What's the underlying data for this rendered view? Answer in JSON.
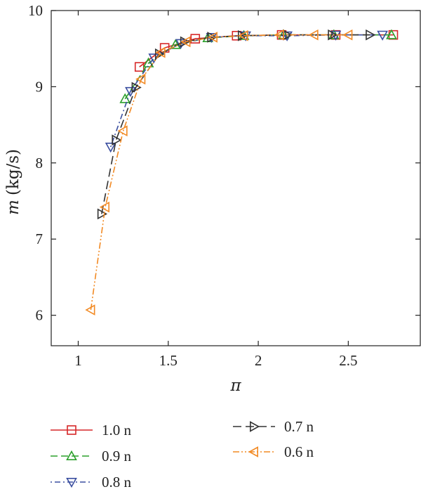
{
  "chart_data": {
    "type": "line",
    "xlabel": "π",
    "ylabel": "m",
    "ylabel_unit": "(kg/s)",
    "xlim": [
      0.85,
      2.9
    ],
    "ylim": [
      5.6,
      10
    ],
    "xticks": [
      1,
      1.5,
      2,
      2.5
    ],
    "xtick_labels": [
      "1",
      "1.5",
      "2",
      "2.5"
    ],
    "yticks": [
      6,
      7,
      8,
      9,
      10
    ],
    "ytick_labels": [
      "6",
      "7",
      "8",
      "9",
      "10"
    ],
    "grid": false,
    "legend_position": "bottom",
    "series": [
      {
        "name": "1.0 n",
        "color": "#d62728",
        "marker": "square",
        "dash": "solid",
        "x": [
          1.34,
          1.48,
          1.65,
          1.88,
          2.13,
          2.43,
          2.75
        ],
        "y": [
          9.26,
          9.51,
          9.63,
          9.67,
          9.68,
          9.68,
          9.68
        ]
      },
      {
        "name": "0.9 n",
        "color": "#2ca02c",
        "marker": "triangle-up",
        "dash": "dashed",
        "x": [
          1.26,
          1.39,
          1.54,
          1.72,
          1.92,
          2.14,
          2.42,
          2.74
        ],
        "y": [
          8.84,
          9.31,
          9.55,
          9.64,
          9.67,
          9.68,
          9.68,
          9.68
        ]
      },
      {
        "name": "0.8 n",
        "color": "#3b4fa0",
        "marker": "triangle-down",
        "dash": "dashdot",
        "x": [
          1.18,
          1.29,
          1.42,
          1.57,
          1.74,
          1.93,
          2.16,
          2.43,
          2.69
        ],
        "y": [
          8.21,
          8.94,
          9.38,
          9.57,
          9.65,
          9.67,
          9.67,
          9.68,
          9.68
        ]
      },
      {
        "name": "0.7 n",
        "color": "#333333",
        "marker": "triangle-right",
        "dash": "longdash",
        "x": [
          1.13,
          1.21,
          1.32,
          1.45,
          1.59,
          1.74,
          1.91,
          2.16,
          2.41,
          2.62
        ],
        "y": [
          7.33,
          8.3,
          8.99,
          9.43,
          9.59,
          9.65,
          9.67,
          9.68,
          9.68,
          9.68
        ]
      },
      {
        "name": "0.6 n",
        "color": "#f28a24",
        "marker": "triangle-left",
        "dash": "dashdotdot",
        "x": [
          1.07,
          1.15,
          1.25,
          1.35,
          1.46,
          1.6,
          1.75,
          1.92,
          2.12,
          2.31,
          2.5
        ],
        "y": [
          6.07,
          7.42,
          8.42,
          9.1,
          9.45,
          9.59,
          9.65,
          9.67,
          9.68,
          9.68,
          9.68
        ]
      }
    ]
  }
}
